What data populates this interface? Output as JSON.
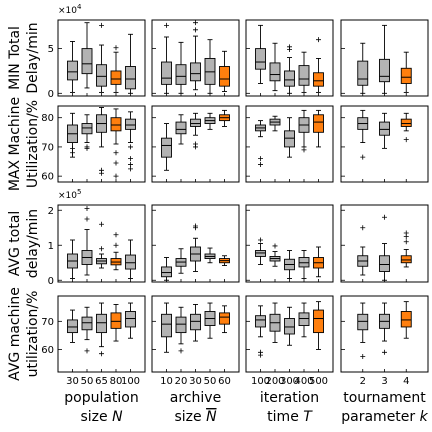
{
  "chart_data": {
    "type": "boxplot",
    "grid": false,
    "highlight_color": "#ff7f0e",
    "box_color": "#b3b3b3",
    "columns": [
      {
        "label_line1": "population",
        "label_line2": "size",
        "symbol": "N",
        "overline": false,
        "ticks": [
          "30",
          "50",
          "65",
          "80",
          "100"
        ],
        "highlight_index": 3
      },
      {
        "label_line1": "archive",
        "label_line2": "size",
        "symbol": "N",
        "overline": true,
        "ticks": [
          "10",
          "20",
          "30",
          "50",
          "60"
        ],
        "highlight_index": 4
      },
      {
        "label_line1": "iteration",
        "label_line2": "time",
        "symbol": "T",
        "overline": false,
        "ticks": [
          "100",
          "200",
          "300",
          "400",
          "500"
        ],
        "highlight_index": 4
      },
      {
        "label_line1": "tournament",
        "label_line2": "parameter",
        "symbol": "k",
        "overline": false,
        "ticks": [
          "2",
          "3",
          "4"
        ],
        "highlight_index": 2
      }
    ],
    "rows": [
      {
        "ylabel_line1": "MIN Total",
        "ylabel_line2": "Delay/min",
        "multiplier": "×10^4",
        "mult_base": "×10",
        "mult_exp": "4",
        "ylim": [
          -0.3,
          8.2
        ],
        "yticks": [
          0,
          5
        ],
        "ytick_labels": [
          "0",
          "5"
        ],
        "panels": [
          [
            {
              "q1": 1.5,
              "med": 2.4,
              "q3": 3.6,
              "lo": 0.1,
              "hi": 5.8,
              "fl": []
            },
            {
              "q1": 2.2,
              "med": 3.3,
              "q3": 5.0,
              "lo": 0.6,
              "hi": 7.9,
              "fl": []
            },
            {
              "q1": 0.8,
              "med": 1.9,
              "q3": 3.2,
              "lo": 0.1,
              "hi": 5.4,
              "fl": [
                7.6
              ]
            },
            {
              "q1": 1.0,
              "med": 1.6,
              "q3": 2.5,
              "lo": 0.1,
              "hi": 4.6,
              "fl": [
                5.1
              ]
            },
            {
              "q1": 0.5,
              "med": 1.6,
              "q3": 3.0,
              "lo": 0.0,
              "hi": 6.6,
              "fl": []
            }
          ],
          [
            {
              "q1": 1.0,
              "med": 1.7,
              "q3": 3.5,
              "lo": 0.0,
              "hi": 6.3,
              "fl": [
                7.6
              ]
            },
            {
              "q1": 1.0,
              "med": 1.9,
              "q3": 3.2,
              "lo": 0.0,
              "hi": 5.7,
              "fl": []
            },
            {
              "q1": 1.4,
              "med": 2.2,
              "q3": 3.4,
              "lo": 0.4,
              "hi": 6.4,
              "fl": [
                7.1,
                7.9
              ]
            },
            {
              "q1": 1.0,
              "med": 2.4,
              "q3": 3.9,
              "lo": 0.0,
              "hi": 6.0,
              "fl": []
            },
            {
              "q1": 0.8,
              "med": 1.6,
              "q3": 3.0,
              "lo": 0.2,
              "hi": 4.7,
              "fl": []
            }
          ],
          [
            {
              "q1": 2.7,
              "med": 3.5,
              "q3": 5.0,
              "lo": 1.1,
              "hi": 7.6,
              "fl": []
            },
            {
              "q1": 1.4,
              "med": 2.1,
              "q3": 3.4,
              "lo": 0.3,
              "hi": 5.6,
              "fl": []
            },
            {
              "q1": 0.8,
              "med": 1.5,
              "q3": 2.5,
              "lo": 0.0,
              "hi": 4.0,
              "fl": [
                4.9,
                5.2
              ]
            },
            {
              "q1": 0.9,
              "med": 1.6,
              "q3": 3.1,
              "lo": 0.1,
              "hi": 4.6,
              "fl": []
            },
            {
              "q1": 0.8,
              "med": 1.4,
              "q3": 2.3,
              "lo": 0.1,
              "hi": 3.9,
              "fl": [
                6.0
              ]
            }
          ],
          [
            {
              "q1": 0.9,
              "med": 1.6,
              "q3": 3.6,
              "lo": 0.0,
              "hi": 5.6,
              "fl": []
            },
            {
              "q1": 1.3,
              "med": 1.9,
              "q3": 3.8,
              "lo": 0.0,
              "hi": 7.6,
              "fl": []
            },
            {
              "q1": 1.1,
              "med": 1.8,
              "q3": 2.8,
              "lo": 0.1,
              "hi": 4.6,
              "fl": []
            }
          ]
        ]
      },
      {
        "ylabel_line1": "MAX Machine",
        "ylabel_line2": "Utilization/%",
        "multiplier": "",
        "mult_base": "",
        "mult_exp": "",
        "ylim": [
          58,
          84
        ],
        "yticks": [
          60,
          70,
          80
        ],
        "ytick_labels": [
          "60",
          "70",
          "80"
        ],
        "panels": [
          [
            {
              "q1": 71.5,
              "med": 74.5,
              "q3": 77.5,
              "lo": 66.5,
              "hi": 81.5,
              "fl": [
                68,
                69.5
              ]
            },
            {
              "q1": 74.5,
              "med": 76.5,
              "q3": 78.0,
              "lo": 71.5,
              "hi": 81.0,
              "fl": [
                69.5,
                70
              ]
            },
            {
              "q1": 75.0,
              "med": 78.0,
              "q3": 81.0,
              "lo": 70.0,
              "hi": 83.5,
              "fl": [
                61,
                62
              ]
            },
            {
              "q1": 75.5,
              "med": 77.5,
              "q3": 80.0,
              "lo": 71.0,
              "hi": 83.0,
              "fl": [
                60,
                64.5,
                68
              ]
            },
            {
              "q1": 76.0,
              "med": 77.5,
              "q3": 79.5,
              "lo": 71.5,
              "hi": 82.0,
              "fl": [
                62.5,
                64,
                66,
                70
              ]
            }
          ],
          [
            {
              "q1": 66.5,
              "med": 70.5,
              "q3": 73.0,
              "lo": 62.0,
              "hi": 78.0,
              "fl": []
            },
            {
              "q1": 74.5,
              "med": 76.0,
              "q3": 78.5,
              "lo": 71.0,
              "hi": 81.0,
              "fl": []
            },
            {
              "q1": 77.0,
              "med": 78.0,
              "q3": 79.5,
              "lo": 74.0,
              "hi": 81.5,
              "fl": [
                70,
                71
              ]
            },
            {
              "q1": 78.0,
              "med": 79.0,
              "q3": 80.0,
              "lo": 76.0,
              "hi": 81.5,
              "fl": []
            },
            {
              "q1": 79.0,
              "med": 80.0,
              "q3": 81.0,
              "lo": 77.0,
              "hi": 82.5,
              "fl": []
            }
          ],
          [
            {
              "q1": 75.5,
              "med": 76.5,
              "q3": 77.5,
              "lo": 73.5,
              "hi": 79.0,
              "fl": [
                64,
                66
              ]
            },
            {
              "q1": 77.5,
              "med": 78.5,
              "q3": 79.5,
              "lo": 75.5,
              "hi": 80.5,
              "fl": []
            },
            {
              "q1": 70.0,
              "med": 73.0,
              "q3": 75.5,
              "lo": 66.5,
              "hi": 80.0,
              "fl": []
            },
            {
              "q1": 75.0,
              "med": 77.5,
              "q3": 80.0,
              "lo": 70.0,
              "hi": 82.5,
              "fl": [
                69
              ]
            },
            {
              "q1": 75.0,
              "med": 78.5,
              "q3": 81.0,
              "lo": 70.0,
              "hi": 82.5,
              "fl": []
            }
          ],
          [
            {
              "q1": 76.0,
              "med": 78.0,
              "q3": 80.0,
              "lo": 71.5,
              "hi": 82.5,
              "fl": [
                66.5
              ]
            },
            {
              "q1": 74.0,
              "med": 76.0,
              "q3": 78.5,
              "lo": 69.5,
              "hi": 81.5,
              "fl": []
            },
            {
              "q1": 77.0,
              "med": 78.0,
              "q3": 79.5,
              "lo": 75.5,
              "hi": 81.5,
              "fl": [
                72.5
              ]
            }
          ]
        ]
      },
      {
        "ylabel_line1": "AVG total",
        "ylabel_line2": "delay/min",
        "multiplier": "×10^5",
        "mult_base": "×10",
        "mult_exp": "5",
        "ylim": [
          -0.05,
          2.15
        ],
        "yticks": [
          0,
          1,
          2
        ],
        "ytick_labels": [
          "0",
          "1",
          "2"
        ],
        "panels": [
          [
            {
              "q1": 0.35,
              "med": 0.55,
              "q3": 0.75,
              "lo": 0.05,
              "hi": 1.15,
              "fl": []
            },
            {
              "q1": 0.45,
              "med": 0.65,
              "q3": 0.85,
              "lo": 0.15,
              "hi": 1.45,
              "fl": [
                1.75,
                2.05
              ]
            },
            {
              "q1": 0.47,
              "med": 0.55,
              "q3": 0.62,
              "lo": 0.35,
              "hi": 0.75,
              "fl": [
                0.9,
                1.6
              ]
            },
            {
              "q1": 0.44,
              "med": 0.52,
              "q3": 0.62,
              "lo": 0.3,
              "hi": 0.8,
              "fl": [
                1.0,
                1.3
              ]
            },
            {
              "q1": 0.32,
              "med": 0.5,
              "q3": 0.72,
              "lo": 0.05,
              "hi": 1.15,
              "fl": []
            }
          ],
          [
            {
              "q1": 0.1,
              "med": 0.22,
              "q3": 0.38,
              "lo": 0.0,
              "hi": 0.65,
              "fl": []
            },
            {
              "q1": 0.4,
              "med": 0.52,
              "q3": 0.62,
              "lo": 0.2,
              "hi": 0.9,
              "fl": []
            },
            {
              "q1": 0.55,
              "med": 0.75,
              "q3": 0.95,
              "lo": 0.25,
              "hi": 1.2,
              "fl": [
                1.5,
                1.55
              ]
            },
            {
              "q1": 0.62,
              "med": 0.68,
              "q3": 0.75,
              "lo": 0.5,
              "hi": 0.92,
              "fl": []
            },
            {
              "q1": 0.5,
              "med": 0.56,
              "q3": 0.62,
              "lo": 0.42,
              "hi": 0.7,
              "fl": []
            }
          ],
          [
            {
              "q1": 0.68,
              "med": 0.78,
              "q3": 0.85,
              "lo": 0.45,
              "hi": 1.05,
              "fl": [
                1.15
              ]
            },
            {
              "q1": 0.55,
              "med": 0.62,
              "q3": 0.68,
              "lo": 0.4,
              "hi": 0.82,
              "fl": [
                0.98
              ]
            },
            {
              "q1": 0.3,
              "med": 0.45,
              "q3": 0.6,
              "lo": 0.05,
              "hi": 0.85,
              "fl": []
            },
            {
              "q1": 0.38,
              "med": 0.5,
              "q3": 0.65,
              "lo": 0.05,
              "hi": 0.85,
              "fl": []
            },
            {
              "q1": 0.35,
              "med": 0.5,
              "q3": 0.65,
              "lo": 0.1,
              "hi": 0.95,
              "fl": []
            }
          ],
          [
            {
              "q1": 0.4,
              "med": 0.55,
              "q3": 0.7,
              "lo": 0.15,
              "hi": 0.95,
              "fl": [
                1.5
              ]
            },
            {
              "q1": 0.25,
              "med": 0.45,
              "q3": 0.7,
              "lo": 0.0,
              "hi": 1.05,
              "fl": [
                1.8
              ]
            },
            {
              "q1": 0.5,
              "med": 0.58,
              "q3": 0.7,
              "lo": 0.38,
              "hi": 0.88,
              "fl": [
                1.1,
                1.25,
                1.35
              ]
            }
          ]
        ]
      },
      {
        "ylabel_line1": "AVG machine",
        "ylabel_line2": "utilization/%",
        "multiplier": "",
        "mult_base": "",
        "mult_exp": "",
        "ylim": [
          52,
          79
        ],
        "yticks": [
          60,
          70
        ],
        "ytick_labels": [
          "60",
          "70"
        ],
        "panels": [
          [
            {
              "q1": 66.0,
              "med": 68.0,
              "q3": 70.5,
              "lo": 62.5,
              "hi": 74.0,
              "fl": []
            },
            {
              "q1": 67.0,
              "med": 69.5,
              "q3": 71.5,
              "lo": 63.5,
              "hi": 75.0,
              "fl": [
                59.5
              ]
            },
            {
              "q1": 66.0,
              "med": 69.5,
              "q3": 72.5,
              "lo": 61.0,
              "hi": 76.5,
              "fl": [
                58.5
              ]
            },
            {
              "q1": 67.5,
              "med": 70.0,
              "q3": 73.0,
              "lo": 63.0,
              "hi": 76.0,
              "fl": []
            },
            {
              "q1": 68.0,
              "med": 71.0,
              "q3": 73.5,
              "lo": 64.0,
              "hi": 76.5,
              "fl": []
            }
          ],
          [
            {
              "q1": 64.5,
              "med": 69.0,
              "q3": 72.5,
              "lo": 59.0,
              "hi": 76.5,
              "fl": []
            },
            {
              "q1": 66.0,
              "med": 69.0,
              "q3": 71.5,
              "lo": 62.0,
              "hi": 75.0,
              "fl": [
                59.5
              ]
            },
            {
              "q1": 67.0,
              "med": 70.0,
              "q3": 72.5,
              "lo": 63.0,
              "hi": 76.0,
              "fl": []
            },
            {
              "q1": 68.5,
              "med": 71.0,
              "q3": 73.5,
              "lo": 64.0,
              "hi": 76.5,
              "fl": []
            },
            {
              "q1": 69.0,
              "med": 71.5,
              "q3": 73.0,
              "lo": 66.0,
              "hi": 75.5,
              "fl": []
            }
          ],
          [
            {
              "q1": 68.0,
              "med": 70.5,
              "q3": 72.0,
              "lo": 64.5,
              "hi": 75.5,
              "fl": [
                58,
                59
              ]
            },
            {
              "q1": 66.5,
              "med": 69.5,
              "q3": 72.5,
              "lo": 62.5,
              "hi": 76.5,
              "fl": []
            },
            {
              "q1": 65.5,
              "med": 68.0,
              "q3": 71.0,
              "lo": 61.5,
              "hi": 75.0,
              "fl": []
            },
            {
              "q1": 68.5,
              "med": 71.0,
              "q3": 73.0,
              "lo": 64.5,
              "hi": 76.5,
              "fl": []
            },
            {
              "q1": 66.0,
              "med": 71.0,
              "q3": 74.0,
              "lo": 60.0,
              "hi": 77.0,
              "fl": []
            }
          ],
          [
            {
              "q1": 67.0,
              "med": 70.0,
              "q3": 72.5,
              "lo": 62.5,
              "hi": 76.5,
              "fl": [
                57.5
              ]
            },
            {
              "q1": 67.5,
              "med": 70.0,
              "q3": 72.5,
              "lo": 63.0,
              "hi": 76.5,
              "fl": [
                59
              ]
            },
            {
              "q1": 68.0,
              "med": 70.5,
              "q3": 73.5,
              "lo": 64.0,
              "hi": 77.0,
              "fl": []
            }
          ]
        ]
      }
    ]
  }
}
